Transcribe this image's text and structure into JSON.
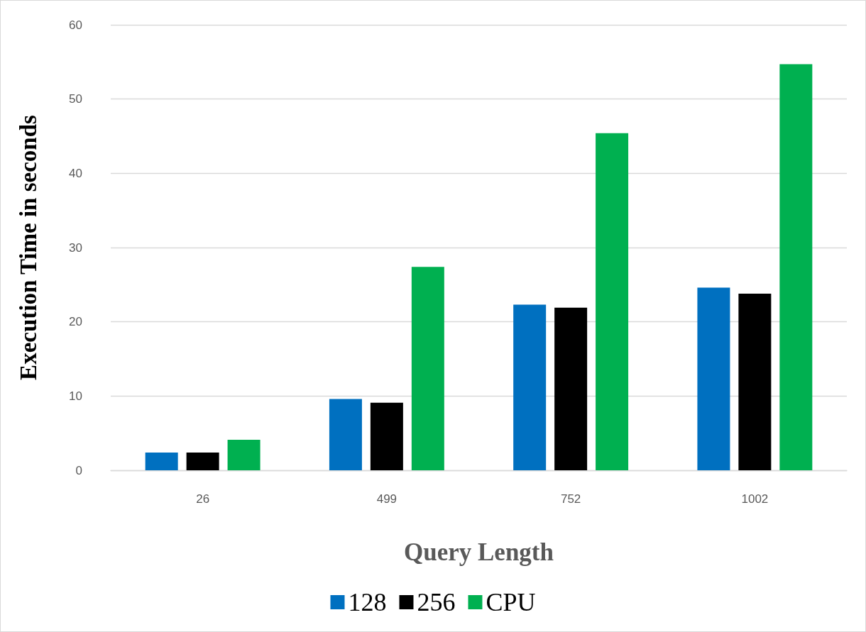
{
  "chart_data": {
    "type": "bar",
    "xlabel": "Query Length",
    "ylabel": "Execution Time in seconds",
    "categories": [
      "26",
      "499",
      "752",
      "1002"
    ],
    "series": [
      {
        "name": "128",
        "color": "#0070c0",
        "values": [
          2.4,
          9.6,
          22.3,
          24.6
        ]
      },
      {
        "name": "256",
        "color": "#000000",
        "values": [
          2.4,
          9.1,
          21.9,
          23.8
        ]
      },
      {
        "name": "CPU",
        "color": "#00b050",
        "values": [
          4.1,
          27.4,
          45.4,
          54.7
        ]
      }
    ],
    "ylim": [
      0,
      60
    ],
    "yticks": [
      0,
      10,
      20,
      30,
      40,
      50,
      60
    ],
    "grid": "y",
    "legend": "bottom"
  }
}
